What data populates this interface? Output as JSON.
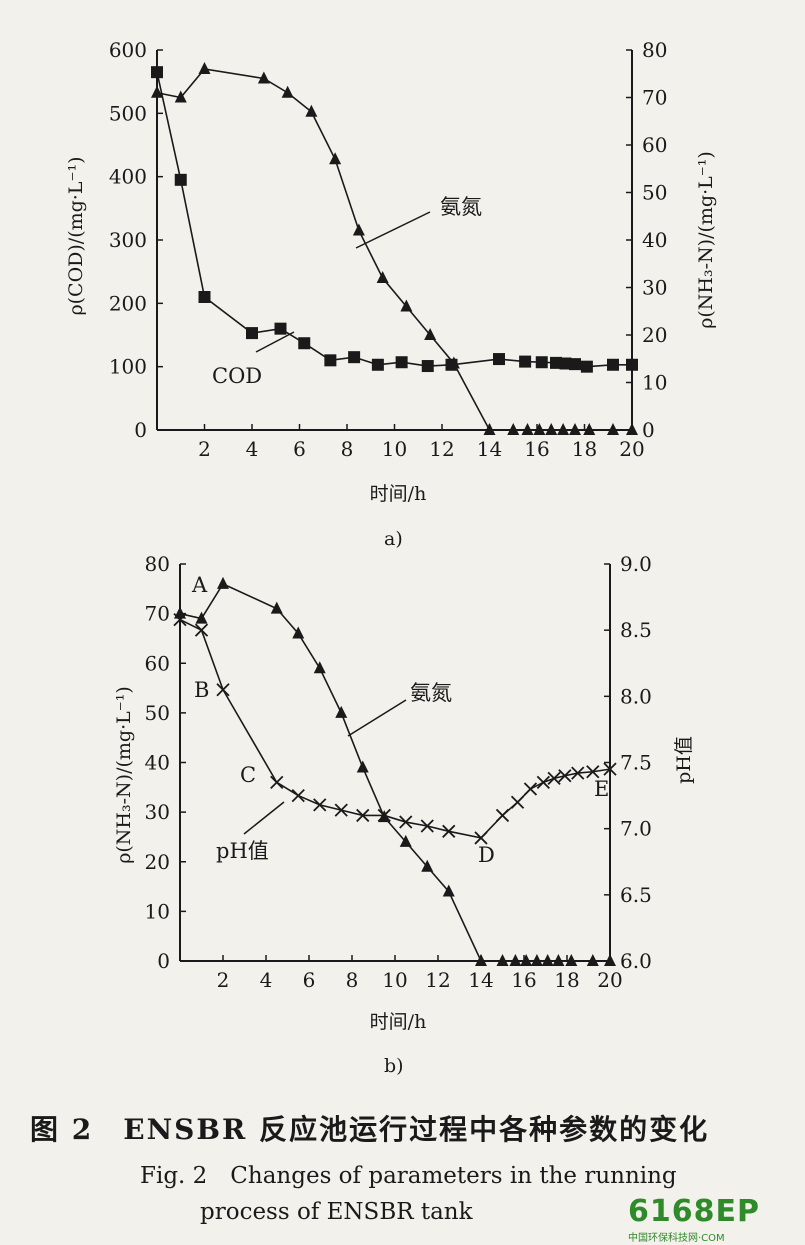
{
  "chart_data": [
    {
      "panel_label": "a)",
      "type": "line",
      "xlabel": "时间/h",
      "ylabel_left": "ρ(COD)/(mg·L⁻¹)",
      "ylabel_right": "ρ(NH₃-N)/(mg·L⁻¹)",
      "xlim": [
        0,
        20
      ],
      "ylim_left": [
        0,
        600
      ],
      "ylim_right": [
        0,
        80
      ],
      "x_ticks": [
        "2",
        "4",
        "6",
        "8",
        "10",
        "12",
        "14",
        "16",
        "18",
        "20"
      ],
      "y_left_ticks": [
        "0",
        "100",
        "200",
        "300",
        "400",
        "500",
        "600"
      ],
      "y_right_ticks": [
        "0",
        "10",
        "20",
        "30",
        "40",
        "50",
        "60",
        "70",
        "80"
      ],
      "series": [
        {
          "name": "COD",
          "axis": "left",
          "marker": "square",
          "x": [
            0,
            1,
            2,
            4,
            5.2,
            6.2,
            7.3,
            8.3,
            9.3,
            10.3,
            11.4,
            12.4,
            14.4,
            15.5,
            16.2,
            16.8,
            17.2,
            17.6,
            18.1,
            19.2,
            20
          ],
          "y": [
            565,
            395,
            210,
            153,
            160,
            137,
            110,
            115,
            103,
            107,
            101,
            103,
            112,
            108,
            107,
            106,
            105,
            104,
            100,
            103,
            103
          ]
        },
        {
          "name": "氨氮",
          "axis": "right",
          "marker": "triangle",
          "x": [
            0,
            1,
            2,
            4.5,
            5.5,
            6.5,
            7.5,
            8.5,
            9.5,
            10.5,
            11.5,
            12.5,
            14,
            15,
            15.6,
            16.1,
            16.6,
            17.1,
            17.6,
            18.2,
            19.2,
            20
          ],
          "y": [
            71,
            70,
            76,
            74,
            71,
            67,
            57,
            42,
            32,
            26,
            20,
            14,
            0,
            0,
            0,
            0,
            0,
            0,
            0,
            0,
            0,
            0
          ]
        }
      ],
      "annotations": [
        "氨氮",
        "COD"
      ]
    },
    {
      "panel_label": "b)",
      "type": "line",
      "xlabel": "时间/h",
      "ylabel_left": "ρ(NH₃-N)/(mg·L⁻¹)",
      "ylabel_right": "pH值",
      "xlim": [
        0,
        20
      ],
      "ylim_left": [
        0,
        80
      ],
      "ylim_right": [
        6.0,
        9.0
      ],
      "x_ticks": [
        "2",
        "4",
        "6",
        "8",
        "10",
        "12",
        "14",
        "16",
        "18",
        "20"
      ],
      "y_left_ticks": [
        "0",
        "10",
        "20",
        "30",
        "40",
        "50",
        "60",
        "70",
        "80"
      ],
      "y_right_ticks": [
        "6.0",
        "6.5",
        "7.0",
        "7.5",
        "8.0",
        "8.5",
        "9.0"
      ],
      "series": [
        {
          "name": "氨氮",
          "axis": "left",
          "marker": "triangle",
          "x": [
            0,
            1,
            2,
            4.5,
            5.5,
            6.5,
            7.5,
            8.5,
            9.5,
            10.5,
            11.5,
            12.5,
            14,
            15,
            15.6,
            16.1,
            16.6,
            17.1,
            17.6,
            18.2,
            19.2,
            20
          ],
          "y": [
            70,
            69,
            76,
            71,
            66,
            59,
            50,
            39,
            29,
            24,
            19,
            14,
            0,
            0,
            0,
            0,
            0,
            0,
            0,
            0,
            0,
            0
          ]
        },
        {
          "name": "pH值",
          "axis": "right",
          "marker": "x",
          "x": [
            0,
            1,
            2,
            4.5,
            5.5,
            6.5,
            7.5,
            8.5,
            9.5,
            10.5,
            11.5,
            12.5,
            14,
            15,
            15.7,
            16.3,
            16.9,
            17.4,
            17.9,
            18.5,
            19.2,
            20
          ],
          "y": [
            8.58,
            8.5,
            8.05,
            7.35,
            7.25,
            7.18,
            7.14,
            7.1,
            7.1,
            7.05,
            7.02,
            6.98,
            6.93,
            7.1,
            7.2,
            7.3,
            7.35,
            7.38,
            7.4,
            7.42,
            7.43,
            7.45
          ]
        }
      ],
      "annotations": [
        "氨氮",
        "pH值",
        "A",
        "B",
        "C",
        "D",
        "E"
      ]
    }
  ],
  "caption": {
    "cn": "图 2　ENSBR 反应池运行过程中各种参数的变化",
    "en_line1": "Fig. 2　Changes of parameters in the running",
    "en_line2": "process of ENSBR tank"
  },
  "watermark": {
    "logo": "6168EP",
    "sub": "中国环保科技网·COM"
  }
}
